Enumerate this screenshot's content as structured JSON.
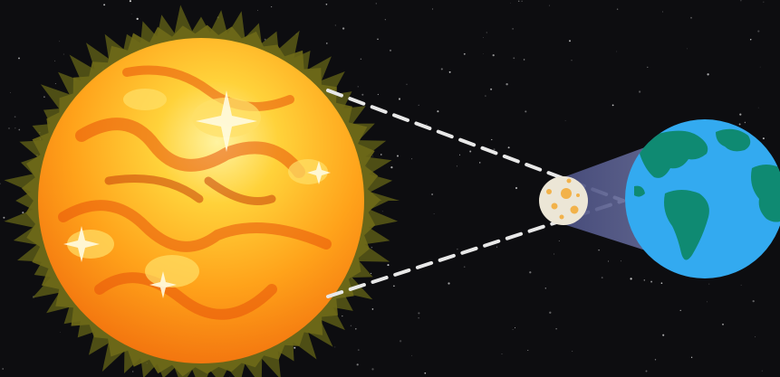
{
  "diagram": {
    "subject": "solar eclipse",
    "bodies": [
      {
        "name": "sun",
        "order": 1
      },
      {
        "name": "moon",
        "order": 2
      },
      {
        "name": "earth",
        "order": 3
      }
    ],
    "rays": {
      "count": 2,
      "style": "dashed"
    },
    "umbra": {
      "present": true
    }
  },
  "colors": {
    "space": "#0d0d10",
    "sun_core": "#ffd23a",
    "sun_mid": "#ffa21a",
    "sun_edge": "#f06a0c",
    "corona": "#5a5a16",
    "moon": "#ece6d6",
    "moon_crater": "#f2b24a",
    "shadow_cone": "#5a5f8e",
    "ocean": "#33aaf0",
    "land": "#0f8a72",
    "ray": "#e8e8e8"
  }
}
